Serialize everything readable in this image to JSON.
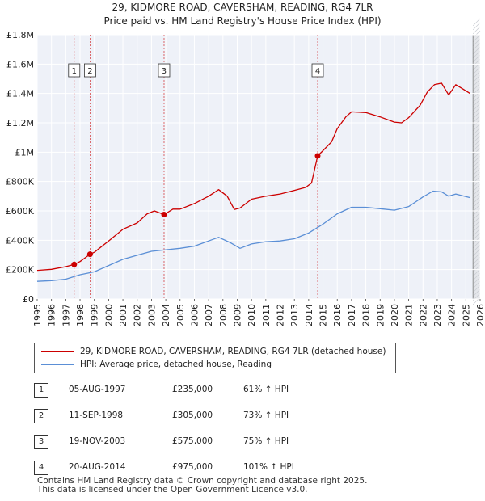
{
  "title_line1": "29, KIDMORE ROAD, CAVERSHAM, READING, RG4 7LR",
  "title_line2": "Price paid vs. HM Land Registry's House Price Index (HPI)",
  "chart_data": {
    "type": "line",
    "title": "29, KIDMORE ROAD, CAVERSHAM, READING, RG4 7LR",
    "subtitle": "Price paid vs. HM Land Registry's House Price Index (HPI)",
    "xlabel": "",
    "ylabel": "",
    "xlim": [
      1995,
      2026
    ],
    "ylim": [
      0,
      1800000
    ],
    "grid": true,
    "y_ticks": [
      {
        "value": 0,
        "label": "£0"
      },
      {
        "value": 200000,
        "label": "£200K"
      },
      {
        "value": 400000,
        "label": "£400K"
      },
      {
        "value": 600000,
        "label": "£600K"
      },
      {
        "value": 800000,
        "label": "£800K"
      },
      {
        "value": 1000000,
        "label": "£1M"
      },
      {
        "value": 1200000,
        "label": "£1.2M"
      },
      {
        "value": 1400000,
        "label": "£1.4M"
      },
      {
        "value": 1600000,
        "label": "£1.6M"
      },
      {
        "value": 1800000,
        "label": "£1.8M"
      }
    ],
    "x_ticks": [
      "1995",
      "1996",
      "1997",
      "1998",
      "1999",
      "2000",
      "2001",
      "2002",
      "2003",
      "2004",
      "2005",
      "2006",
      "2007",
      "2008",
      "2009",
      "2010",
      "2011",
      "2012",
      "2013",
      "2014",
      "2015",
      "2016",
      "2017",
      "2018",
      "2019",
      "2020",
      "2021",
      "2022",
      "2023",
      "2024",
      "2025",
      "2026"
    ],
    "series": [
      {
        "name": "29, KIDMORE ROAD, CAVERSHAM, READING, RG4 7LR (detached house)",
        "color": "#cc0000",
        "x": [
          1995,
          1996,
          1997,
          1997.59,
          1998,
          1998.7,
          1999,
          2000,
          2001,
          2002,
          2002.7,
          2003.2,
          2003.88,
          2004.5,
          2005,
          2006,
          2007,
          2007.7,
          2008.3,
          2008.8,
          2009.2,
          2010,
          2011,
          2012,
          2013,
          2013.8,
          2014.2,
          2014.63,
          2015,
          2015.6,
          2016,
          2016.6,
          2017,
          2018,
          2019,
          2020,
          2020.5,
          2021,
          2021.8,
          2022.3,
          2022.8,
          2023.3,
          2023.8,
          2024.3,
          2024.8,
          2025.3
        ],
        "y": [
          195000,
          202000,
          220000,
          235000,
          255000,
          305000,
          318000,
          395000,
          475000,
          518000,
          580000,
          600000,
          575000,
          612000,
          612000,
          650000,
          700000,
          745000,
          700000,
          610000,
          620000,
          680000,
          700000,
          715000,
          740000,
          760000,
          790000,
          975000,
          1010000,
          1070000,
          1160000,
          1240000,
          1275000,
          1270000,
          1240000,
          1205000,
          1200000,
          1235000,
          1320000,
          1410000,
          1460000,
          1470000,
          1390000,
          1460000,
          1430000,
          1400000
        ]
      },
      {
        "name": "HPI: Average price, detached house, Reading",
        "color": "#5b8fd6",
        "x": [
          1995,
          1996,
          1997,
          1998,
          1999,
          2000,
          2001,
          2002,
          2003,
          2004,
          2005,
          2006,
          2007,
          2007.7,
          2008.5,
          2009.2,
          2010,
          2011,
          2012,
          2013,
          2014,
          2015,
          2016,
          2017,
          2018,
          2019,
          2020,
          2021,
          2022,
          2022.7,
          2023.3,
          2023.8,
          2024.3,
          2025.3
        ],
        "y": [
          120000,
          125000,
          135000,
          165000,
          185000,
          228000,
          270000,
          298000,
          325000,
          335000,
          345000,
          360000,
          395000,
          420000,
          385000,
          345000,
          375000,
          390000,
          395000,
          410000,
          450000,
          510000,
          580000,
          625000,
          625000,
          615000,
          605000,
          630000,
          695000,
          735000,
          730000,
          700000,
          715000,
          690000
        ]
      }
    ],
    "sales": [
      {
        "num": "1",
        "x": 1997.59,
        "price": 235000
      },
      {
        "num": "2",
        "x": 1998.7,
        "price": 305000
      },
      {
        "num": "3",
        "x": 2003.88,
        "price": 575000
      },
      {
        "num": "4",
        "x": 2014.63,
        "price": 975000
      }
    ],
    "sale_line_color": "#cc0000",
    "forecast_from": 2025.5
  },
  "legend": {
    "property_label": "29, KIDMORE ROAD, CAVERSHAM, READING, RG4 7LR (detached house)",
    "hpi_label": "HPI: Average price, detached house, Reading"
  },
  "sales_table": [
    {
      "num": "1",
      "date": "05-AUG-1997",
      "price": "£235,000",
      "hpi": "61% ↑ HPI"
    },
    {
      "num": "2",
      "date": "11-SEP-1998",
      "price": "£305,000",
      "hpi": "73% ↑ HPI"
    },
    {
      "num": "3",
      "date": "19-NOV-2003",
      "price": "£575,000",
      "hpi": "75% ↑ HPI"
    },
    {
      "num": "4",
      "date": "20-AUG-2014",
      "price": "£975,000",
      "hpi": "101% ↑ HPI"
    }
  ],
  "footer": {
    "line1": "Contains HM Land Registry data © Crown copyright and database right 2025.",
    "line2": "This data is licensed under the Open Government Licence v3.0."
  }
}
